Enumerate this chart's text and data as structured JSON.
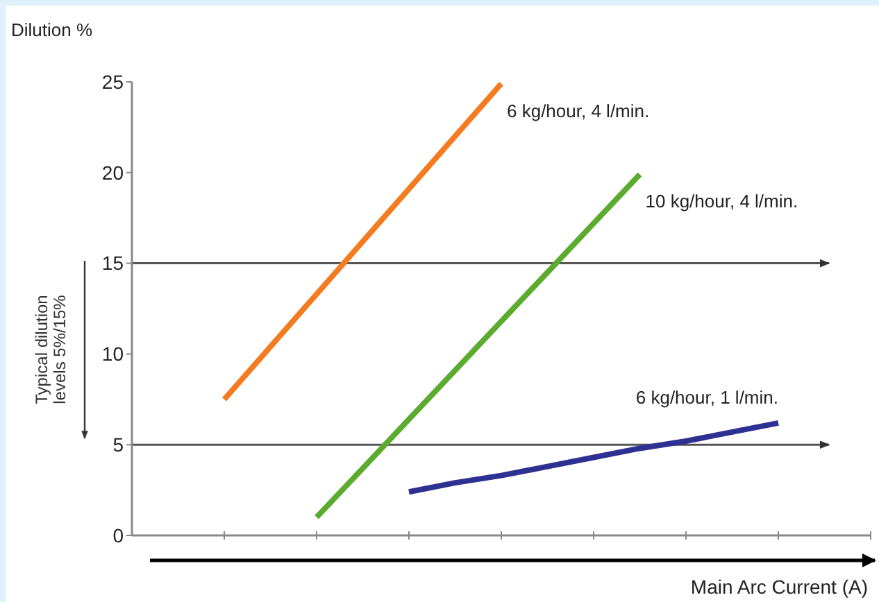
{
  "chart_data": {
    "type": "line",
    "ylabel": "Dilution %",
    "xlabel": "Main Arc Current (A)",
    "categories": [
      null,
      null,
      null,
      null,
      null,
      null,
      null,
      null,
      null,
      null,
      null,
      null,
      null,
      null,
      null,
      null,
      null
    ],
    "ylim": [
      0,
      25
    ],
    "yticks": [
      0,
      5,
      10,
      15,
      20,
      25
    ],
    "grid": false,
    "marker": "none",
    "line_style": "solid",
    "series": [
      {
        "name": "6 kg/hour, 4 l/min.",
        "color": "#f47b20",
        "values": [
          null,
          null,
          7.5,
          10.4,
          13.3,
          16.2,
          19.1,
          22.0,
          24.9,
          null,
          null,
          null,
          null,
          null,
          null,
          null,
          null
        ]
      },
      {
        "name": "10 kg/hour, 4 l/min.",
        "color": "#5aab2e",
        "values": [
          null,
          null,
          null,
          null,
          1.0,
          3.7,
          6.4,
          9.1,
          11.8,
          14.5,
          17.2,
          19.9,
          null,
          null,
          null,
          null,
          null
        ]
      },
      {
        "name": "6 kg/hour, 1 l/min.",
        "color": "#2e3192",
        "values": [
          null,
          null,
          null,
          null,
          null,
          null,
          2.4,
          2.9,
          3.3,
          3.8,
          4.3,
          4.8,
          5.2,
          5.7,
          6.2,
          null,
          null
        ]
      }
    ],
    "ref_lines": [
      {
        "axis": "y",
        "value": 15,
        "color": "#555555"
      },
      {
        "axis": "y",
        "value": 5,
        "color": "#555555"
      }
    ],
    "annotations": [
      "Typical dilution\nlevels 5%/15%"
    ]
  }
}
